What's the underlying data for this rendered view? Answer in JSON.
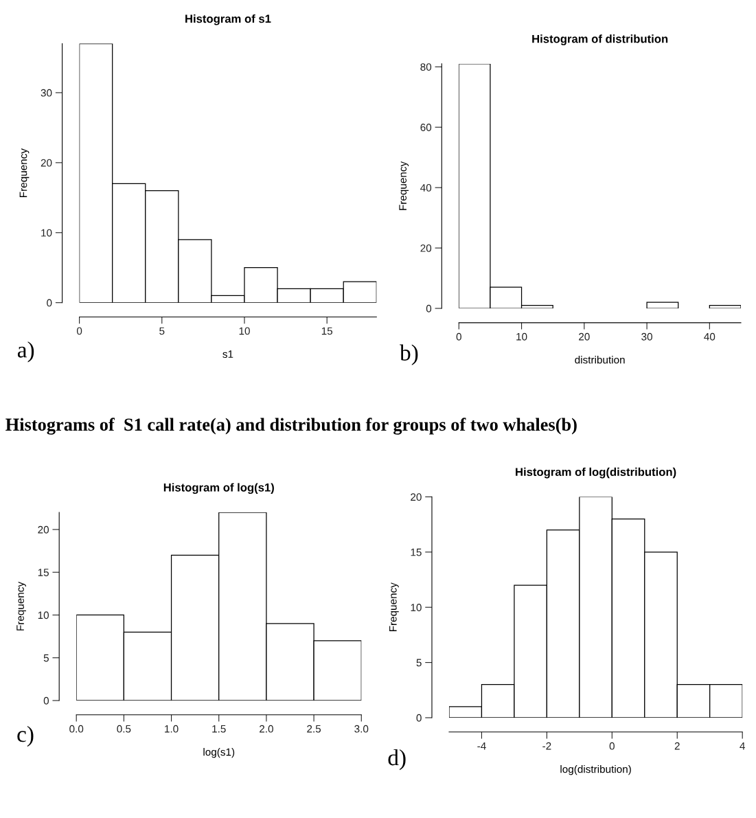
{
  "chart_data": [
    {
      "type": "histogram",
      "title": "Histogram of s1",
      "xlabel": "s1",
      "ylabel": "Frequency",
      "bins": [
        0,
        2,
        4,
        6,
        8,
        10,
        12,
        14,
        16,
        18
      ],
      "values": [
        37,
        17,
        16,
        9,
        1,
        5,
        2,
        2,
        3
      ],
      "color": "#ffffff",
      "xlim": [
        0,
        18
      ],
      "ylim": [
        0,
        37
      ],
      "xticks": [
        0,
        5,
        10,
        15
      ],
      "yticks": [
        0,
        10,
        20,
        30
      ],
      "grid": false,
      "annotations": [
        "a)",
        "Histograms of  S1 call rate(a) and distribution for groups of two whales(b)"
      ]
    },
    {
      "type": "histogram",
      "title": "Histogram of distribution",
      "xlabel": "distribution",
      "ylabel": "Frequency",
      "bins": [
        0,
        5,
        10,
        15,
        20,
        25,
        30,
        35,
        40,
        45
      ],
      "values": [
        81,
        7,
        1,
        0,
        0,
        0,
        2,
        0,
        1
      ],
      "color": "#ffffff",
      "xlim": [
        0,
        45
      ],
      "ylim": [
        0,
        81
      ],
      "xticks": [
        0,
        10,
        20,
        30,
        40
      ],
      "yticks": [
        0,
        20,
        40,
        60,
        80
      ],
      "grid": false,
      "annotations": [
        "b)"
      ]
    },
    {
      "type": "histogram",
      "title": "Histogram of log(s1)",
      "xlabel": "log(s1)",
      "ylabel": "Frequency",
      "bins": [
        0,
        0.5,
        1,
        1.5,
        2,
        2.5,
        3
      ],
      "values": [
        10,
        8,
        17,
        22,
        9,
        7
      ],
      "color": "#ffffff",
      "xlim": [
        0,
        3
      ],
      "ylim": [
        0,
        22
      ],
      "xticks": [
        {
          "value": 0,
          "label": "0.0"
        },
        {
          "value": 0.5,
          "label": "0.5"
        },
        {
          "value": 1,
          "label": "1.0"
        },
        {
          "value": 1.5,
          "label": "1.5"
        },
        {
          "value": 2,
          "label": "2.0"
        },
        {
          "value": 2.5,
          "label": "2.5"
        },
        {
          "value": 3,
          "label": "3.0"
        }
      ],
      "yticks": [
        0,
        5,
        10,
        15,
        20
      ],
      "grid": false,
      "annotations": [
        "c)"
      ]
    },
    {
      "type": "histogram",
      "title": "Histogram of log(distribution)",
      "xlabel": "log(distribution)",
      "ylabel": "Frequency",
      "bins": [
        -5,
        -4,
        -3,
        -2,
        -1,
        0,
        1,
        2,
        3,
        4
      ],
      "values": [
        1,
        3,
        12,
        17,
        20,
        18,
        15,
        3,
        3
      ],
      "color": "#ffffff",
      "xlim": [
        -5,
        4
      ],
      "ylim": [
        0,
        20
      ],
      "xticks": [
        -4,
        -2,
        0,
        2,
        4
      ],
      "yticks": [
        0,
        5,
        10,
        15,
        20
      ],
      "grid": false,
      "annotations": [
        "d)"
      ]
    }
  ]
}
